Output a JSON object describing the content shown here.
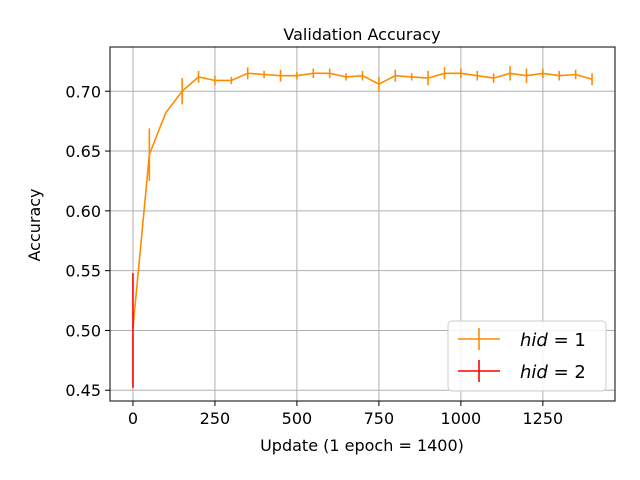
{
  "chart_data": {
    "type": "line",
    "title": "Validation Accuracy",
    "xlabel": "Update (1 epoch = 1400)",
    "ylabel": "Accuracy",
    "xlim": [
      -70,
      1470
    ],
    "ylim": [
      0.441,
      0.737
    ],
    "xticks": [
      0,
      250,
      500,
      750,
      1000,
      1250
    ],
    "yticks": [
      0.45,
      0.5,
      0.55,
      0.6,
      0.65,
      0.7
    ],
    "grid": true,
    "legend_position": "lower-right",
    "series": [
      {
        "name": "hid = 1",
        "color": "#ff8c00",
        "x": [
          0,
          50,
          100,
          150,
          200,
          250,
          300,
          350,
          400,
          450,
          500,
          550,
          600,
          650,
          700,
          750,
          800,
          850,
          900,
          950,
          1000,
          1050,
          1100,
          1150,
          1200,
          1250,
          1300,
          1350,
          1400
        ],
        "y": [
          0.502,
          0.647,
          0.682,
          0.7,
          0.712,
          0.709,
          0.709,
          0.715,
          0.714,
          0.713,
          0.713,
          0.715,
          0.715,
          0.712,
          0.713,
          0.706,
          0.713,
          0.712,
          0.711,
          0.715,
          0.715,
          0.713,
          0.711,
          0.715,
          0.713,
          0.715,
          0.713,
          0.714,
          0.71
        ],
        "err": [
          0,
          0.022,
          0,
          0.011,
          0.005,
          0.004,
          0.003,
          0.005,
          0.003,
          0.005,
          0.003,
          0.004,
          0.004,
          0.003,
          0.004,
          0.006,
          0.005,
          0.003,
          0.006,
          0.005,
          0.004,
          0.004,
          0.004,
          0.006,
          0.006,
          0.004,
          0.004,
          0.004,
          0.005
        ]
      },
      {
        "name": "hid = 2",
        "color": "#ff0000",
        "x": [
          0
        ],
        "y": [
          0.5
        ],
        "err": [
          0.048
        ]
      }
    ],
    "legend": [
      {
        "var": "hid",
        "op": "=",
        "val": "1"
      },
      {
        "var": "hid",
        "op": "=",
        "val": "2"
      }
    ]
  }
}
